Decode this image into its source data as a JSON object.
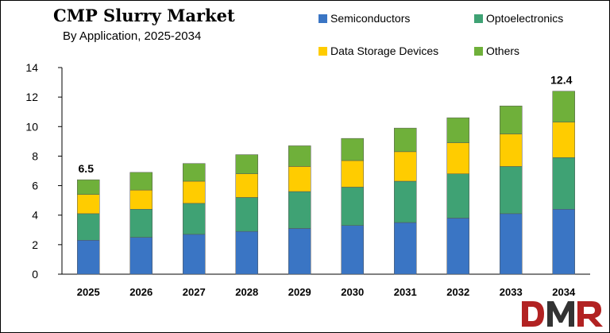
{
  "chart_data": {
    "type": "bar",
    "stacked": true,
    "title": "CMP Slurry Market",
    "subtitle": "By Application, 2025-2034",
    "categories": [
      "2025",
      "2026",
      "2027",
      "2028",
      "2029",
      "2030",
      "2031",
      "2032",
      "2033",
      "2034"
    ],
    "series": [
      {
        "name": "Semiconductors",
        "color": "#3A75C4",
        "values": [
          2.3,
          2.5,
          2.7,
          2.9,
          3.1,
          3.3,
          3.5,
          3.8,
          4.1,
          4.4
        ]
      },
      {
        "name": "Optoelectronics",
        "color": "#3FA274",
        "values": [
          1.8,
          1.9,
          2.1,
          2.3,
          2.5,
          2.6,
          2.8,
          3.0,
          3.2,
          3.5
        ]
      },
      {
        "name": "Data Storage Devices",
        "color": "#FFCC00",
        "values": [
          1.3,
          1.3,
          1.5,
          1.6,
          1.7,
          1.8,
          2.0,
          2.1,
          2.2,
          2.4
        ]
      },
      {
        "name": "Others",
        "color": "#6FB03A",
        "values": [
          1.0,
          1.2,
          1.2,
          1.3,
          1.4,
          1.5,
          1.6,
          1.7,
          1.9,
          2.1
        ]
      }
    ],
    "data_labels": [
      {
        "category": "2025",
        "text": "6.5"
      },
      {
        "category": "2034",
        "text": "12.4"
      }
    ],
    "ylim": [
      0,
      14
    ],
    "yticks": [
      0,
      2,
      4,
      6,
      8,
      10,
      12,
      14
    ],
    "grid": false,
    "legend_position": "top-right"
  },
  "logo": {
    "text": "DMR",
    "colors": [
      "#B22222",
      "#333333"
    ]
  }
}
